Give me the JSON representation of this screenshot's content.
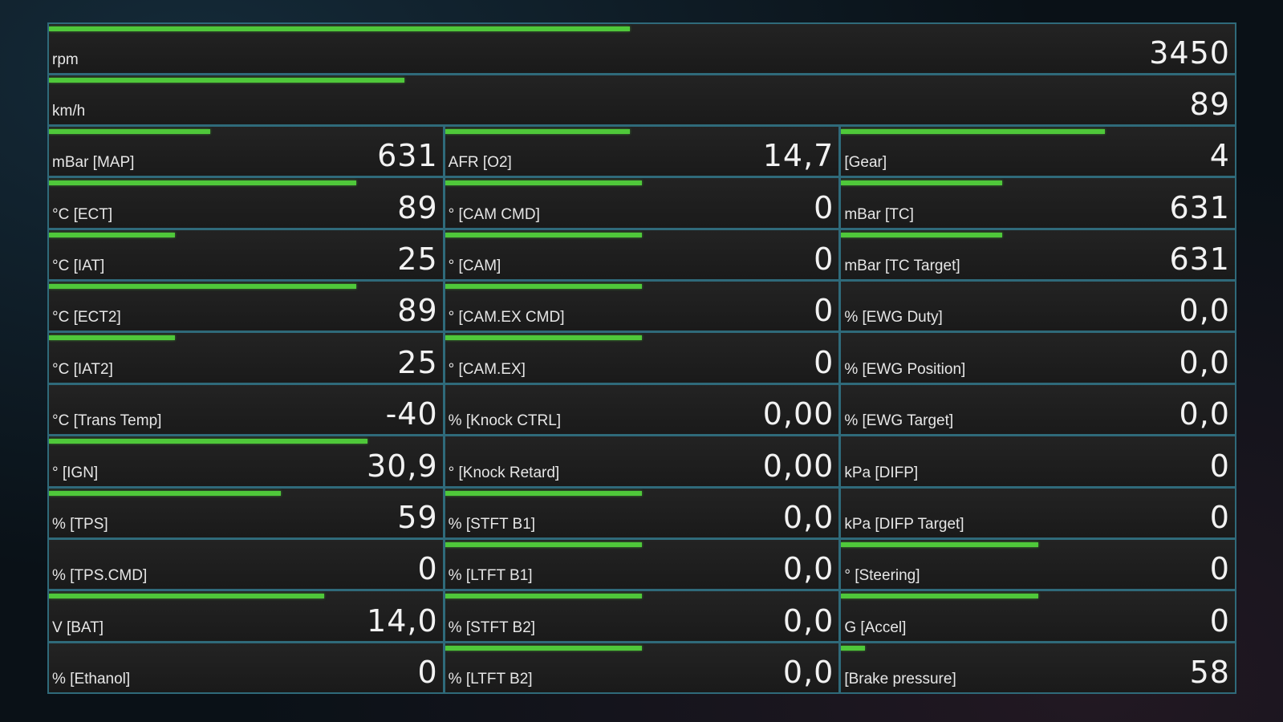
{
  "colors": {
    "bar": "#4fc83a",
    "grid_line": "#2f6a7a",
    "cell_bg": "#1e1e1e",
    "text": "#e6e6e6"
  },
  "full_rows": [
    {
      "label": "rpm",
      "value": "3450",
      "bar_fraction": 0.49
    },
    {
      "label": "km/h",
      "value": "89",
      "bar_fraction": 0.3
    }
  ],
  "columns": [
    [
      {
        "label": "mBar [MAP]",
        "value": "631",
        "bar_fraction": 0.41
      },
      {
        "label": "°C [ECT]",
        "value": "89",
        "bar_fraction": 0.78
      },
      {
        "label": "°C [IAT]",
        "value": "25",
        "bar_fraction": 0.32
      },
      {
        "label": "°C [ECT2]",
        "value": "89",
        "bar_fraction": 0.78
      },
      {
        "label": "°C [IAT2]",
        "value": "25",
        "bar_fraction": 0.32
      },
      {
        "label": "°C [Trans Temp]",
        "value": "-40",
        "bar_fraction": 0
      },
      {
        "label": "° [IGN]",
        "value": "30,9",
        "bar_fraction": 0.81
      },
      {
        "label": "% [TPS]",
        "value": "59",
        "bar_fraction": 0.59
      },
      {
        "label": "% [TPS.CMD]",
        "value": "0",
        "bar_fraction": 0
      },
      {
        "label": "V [BAT]",
        "value": "14,0",
        "bar_fraction": 0.7
      },
      {
        "label": "% [Ethanol]",
        "value": "0",
        "bar_fraction": 0
      }
    ],
    [
      {
        "label": "AFR [O2]",
        "value": "14,7",
        "bar_fraction": 0.47
      },
      {
        "label": "° [CAM CMD]",
        "value": "0",
        "bar_fraction": 0.5
      },
      {
        "label": "° [CAM]",
        "value": "0",
        "bar_fraction": 0.5
      },
      {
        "label": "° [CAM.EX CMD]",
        "value": "0",
        "bar_fraction": 0.5
      },
      {
        "label": "° [CAM.EX]",
        "value": "0",
        "bar_fraction": 0.5
      },
      {
        "label": "% [Knock CTRL]",
        "value": "0,00",
        "bar_fraction": 0
      },
      {
        "label": "° [Knock Retard]",
        "value": "0,00",
        "bar_fraction": 0
      },
      {
        "label": "% [STFT B1]",
        "value": "0,0",
        "bar_fraction": 0.5
      },
      {
        "label": "% [LTFT B1]",
        "value": "0,0",
        "bar_fraction": 0.5
      },
      {
        "label": "% [STFT B2]",
        "value": "0,0",
        "bar_fraction": 0.5
      },
      {
        "label": "% [LTFT B2]",
        "value": "0,0",
        "bar_fraction": 0.5
      }
    ],
    [
      {
        "label": "[Gear]",
        "value": "4",
        "bar_fraction": 0.67
      },
      {
        "label": "mBar [TC]",
        "value": "631",
        "bar_fraction": 0.41
      },
      {
        "label": "mBar [TC Target]",
        "value": "631",
        "bar_fraction": 0.41
      },
      {
        "label": "% [EWG Duty]",
        "value": "0,0",
        "bar_fraction": 0
      },
      {
        "label": "% [EWG Position]",
        "value": "0,0",
        "bar_fraction": 0
      },
      {
        "label": "% [EWG Target]",
        "value": "0,0",
        "bar_fraction": 0
      },
      {
        "label": "kPa [DIFP]",
        "value": "0",
        "bar_fraction": 0
      },
      {
        "label": "kPa [DIFP Target]",
        "value": "0",
        "bar_fraction": 0
      },
      {
        "label": "° [Steering]",
        "value": "0",
        "bar_fraction": 0.5
      },
      {
        "label": "G [Accel]",
        "value": "0",
        "bar_fraction": 0.5
      },
      {
        "label": "[Brake pressure]",
        "value": "58",
        "bar_fraction": 0.06
      }
    ]
  ]
}
